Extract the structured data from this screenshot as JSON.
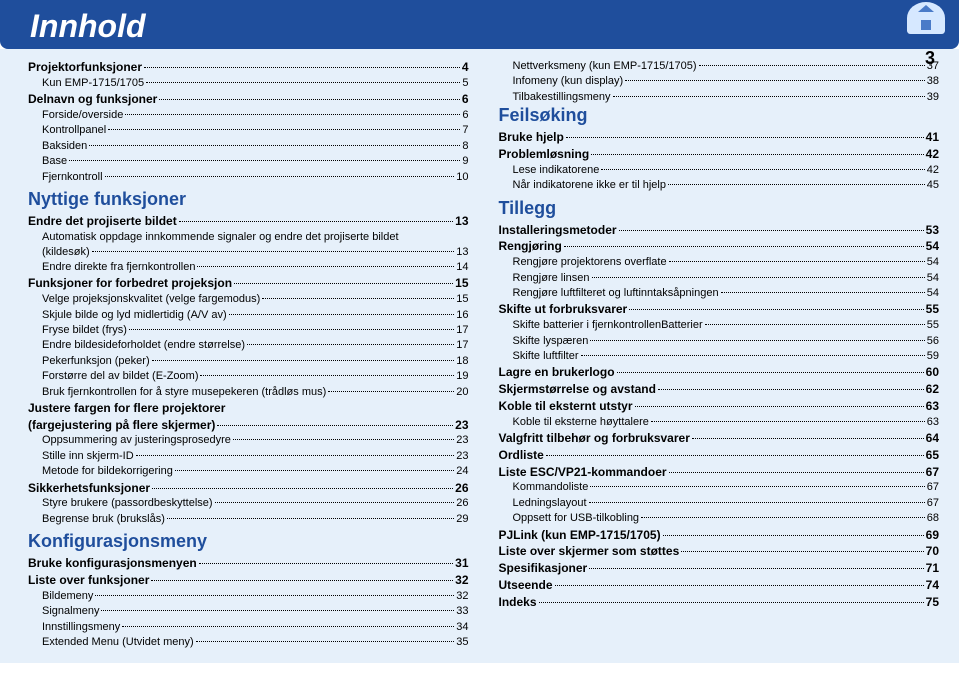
{
  "header": {
    "title": "Innhold",
    "topLabel": "TOP",
    "pageNumber": "3"
  },
  "toc": [
    {
      "type": "row",
      "cls": "bold",
      "label": "Projektorfunksjoner",
      "page": "4"
    },
    {
      "type": "row",
      "cls": "indent1",
      "label": "Kun EMP-1715/1705",
      "page": "5"
    },
    {
      "type": "row",
      "cls": "bold",
      "label": "Delnavn og funksjoner",
      "page": "6"
    },
    {
      "type": "row",
      "cls": "indent1",
      "label": "Forside/overside",
      "page": "6"
    },
    {
      "type": "row",
      "cls": "indent1",
      "label": "Kontrollpanel",
      "page": "7"
    },
    {
      "type": "row",
      "cls": "indent1",
      "label": "Baksiden",
      "page": "8"
    },
    {
      "type": "row",
      "cls": "indent1",
      "label": "Base",
      "page": "9"
    },
    {
      "type": "row",
      "cls": "indent1",
      "label": "Fjernkontroll",
      "page": "10"
    },
    {
      "type": "head",
      "label": "Nyttige funksjoner"
    },
    {
      "type": "row",
      "cls": "bold",
      "label": "Endre det projiserte bildet",
      "page": "13"
    },
    {
      "type": "note",
      "label": "Automatisk oppdage innkommende signaler og endre det projiserte bildet"
    },
    {
      "type": "row",
      "cls": "indent1",
      "label": "(kildesøk)",
      "page": "13"
    },
    {
      "type": "row",
      "cls": "indent1",
      "label": "Endre direkte fra fjernkontrollen",
      "page": "14"
    },
    {
      "type": "row",
      "cls": "bold",
      "label": "Funksjoner for forbedret projeksjon",
      "page": "15"
    },
    {
      "type": "row",
      "cls": "indent1",
      "label": "Velge projeksjonskvalitet (velge fargemodus)",
      "page": "15"
    },
    {
      "type": "row",
      "cls": "indent1",
      "label": "Skjule bilde og lyd midlertidig (A/V av)",
      "page": "16"
    },
    {
      "type": "row",
      "cls": "indent1",
      "label": "Fryse bildet (frys)",
      "page": "17"
    },
    {
      "type": "row",
      "cls": "indent1",
      "label": "Endre bildesideforholdet (endre størrelse)",
      "page": "17"
    },
    {
      "type": "row",
      "cls": "indent1",
      "label": "Pekerfunksjon (peker)",
      "page": "18"
    },
    {
      "type": "row",
      "cls": "indent1",
      "label": "Forstørre del av bildet (E-Zoom)",
      "page": "19"
    },
    {
      "type": "row",
      "cls": "indent1",
      "label": "Bruk fjernkontrollen for å styre musepekeren (trådløs mus)",
      "page": "20"
    },
    {
      "type": "boldnote",
      "label": "Justere fargen for flere projektorer"
    },
    {
      "type": "row",
      "cls": "bold",
      "label": "(fargejustering på flere skjermer)",
      "page": "23"
    },
    {
      "type": "row",
      "cls": "indent1",
      "label": "Oppsummering av justeringsprosedyre",
      "page": "23"
    },
    {
      "type": "row",
      "cls": "indent1",
      "label": "Stille inn skjerm-ID",
      "page": "23"
    },
    {
      "type": "row",
      "cls": "indent1",
      "label": "Metode for bildekorrigering",
      "page": "24"
    },
    {
      "type": "row",
      "cls": "bold",
      "label": "Sikkerhetsfunksjoner",
      "page": "26"
    },
    {
      "type": "row",
      "cls": "indent1",
      "label": "Styre brukere (passordbeskyttelse)",
      "page": "26"
    },
    {
      "type": "row",
      "cls": "indent1",
      "label": "Begrense bruk (brukslås)",
      "page": "29"
    },
    {
      "type": "head",
      "label": "Konfigurasjonsmeny"
    },
    {
      "type": "row",
      "cls": "bold",
      "label": "Bruke konfigurasjonsmenyen",
      "page": "31"
    },
    {
      "type": "row",
      "cls": "bold",
      "label": "Liste over funksjoner",
      "page": "32"
    },
    {
      "type": "row",
      "cls": "indent1",
      "label": "Bildemeny",
      "page": "32"
    },
    {
      "type": "row",
      "cls": "indent1",
      "label": "Signalmeny",
      "page": "33"
    },
    {
      "type": "row",
      "cls": "indent1",
      "label": "Innstillingsmeny",
      "page": "34"
    },
    {
      "type": "row",
      "cls": "indent1",
      "label": "Extended Menu (Utvidet meny)",
      "page": "35"
    },
    {
      "type": "row",
      "cls": "indent1",
      "label": "Nettverksmeny (kun EMP-1715/1705)",
      "page": "37"
    },
    {
      "type": "row",
      "cls": "indent1",
      "label": "Infomeny (kun display)",
      "page": "38"
    },
    {
      "type": "row",
      "cls": "indent1",
      "label": "Tilbakestillingsmeny",
      "page": "39"
    },
    {
      "type": "head",
      "cls": "first",
      "label": "Feilsøking"
    },
    {
      "type": "row",
      "cls": "bold",
      "label": "Bruke hjelp",
      "page": "41"
    },
    {
      "type": "row",
      "cls": "bold",
      "label": "Problemløsning",
      "page": "42"
    },
    {
      "type": "row",
      "cls": "indent1",
      "label": "Lese indikatorene",
      "page": "42"
    },
    {
      "type": "row",
      "cls": "indent1",
      "label": "Når indikatorene ikke er til hjelp",
      "page": "45"
    },
    {
      "type": "head",
      "label": "Tillegg"
    },
    {
      "type": "row",
      "cls": "bold",
      "label": "Installeringsmetoder",
      "page": "53"
    },
    {
      "type": "row",
      "cls": "bold",
      "label": "Rengjøring",
      "page": "54"
    },
    {
      "type": "row",
      "cls": "indent1",
      "label": "Rengjøre projektorens overflate",
      "page": "54"
    },
    {
      "type": "row",
      "cls": "indent1",
      "label": "Rengjøre linsen",
      "page": "54"
    },
    {
      "type": "row",
      "cls": "indent1",
      "label": "Rengjøre luftfilteret og luftinntaksåpningen",
      "page": "54"
    },
    {
      "type": "row",
      "cls": "bold",
      "label": "Skifte ut forbruksvarer",
      "page": "55"
    },
    {
      "type": "row",
      "cls": "indent1",
      "label": "Skifte batterier i fjernkontrollenBatterier",
      "page": "55"
    },
    {
      "type": "row",
      "cls": "indent1",
      "label": "Skifte lyspæren",
      "page": "56"
    },
    {
      "type": "row",
      "cls": "indent1",
      "label": "Skifte luftfilter",
      "page": "59"
    },
    {
      "type": "row",
      "cls": "bold",
      "label": "Lagre en brukerlogo",
      "page": "60"
    },
    {
      "type": "row",
      "cls": "bold",
      "label": "Skjermstørrelse og avstand",
      "page": "62"
    },
    {
      "type": "row",
      "cls": "bold",
      "label": "Koble til eksternt utstyr",
      "page": "63"
    },
    {
      "type": "row",
      "cls": "indent1",
      "label": "Koble til eksterne høyttalere",
      "page": "63"
    },
    {
      "type": "row",
      "cls": "bold",
      "label": "Valgfritt tilbehør og forbruksvarer",
      "page": "64"
    },
    {
      "type": "row",
      "cls": "bold",
      "label": "Ordliste",
      "page": "65"
    },
    {
      "type": "row",
      "cls": "bold",
      "label": "Liste ESC/VP21-kommandoer",
      "page": "67"
    },
    {
      "type": "row",
      "cls": "indent1",
      "label": "Kommandoliste",
      "page": "67"
    },
    {
      "type": "row",
      "cls": "indent1",
      "label": "Ledningslayout",
      "page": "67"
    },
    {
      "type": "row",
      "cls": "indent1",
      "label": "Oppsett for USB-tilkobling",
      "page": "68"
    },
    {
      "type": "row",
      "cls": "bold",
      "label": "PJLink (kun EMP-1715/1705)",
      "page": "69"
    },
    {
      "type": "row",
      "cls": "bold",
      "label": "Liste over skjermer som støttes",
      "page": "70"
    },
    {
      "type": "row",
      "cls": "bold",
      "label": "Spesifikasjoner",
      "page": "71"
    },
    {
      "type": "row",
      "cls": "bold",
      "label": "Utseende",
      "page": "74"
    },
    {
      "type": "row",
      "cls": "bold",
      "label": "Indeks",
      "page": "75"
    }
  ]
}
